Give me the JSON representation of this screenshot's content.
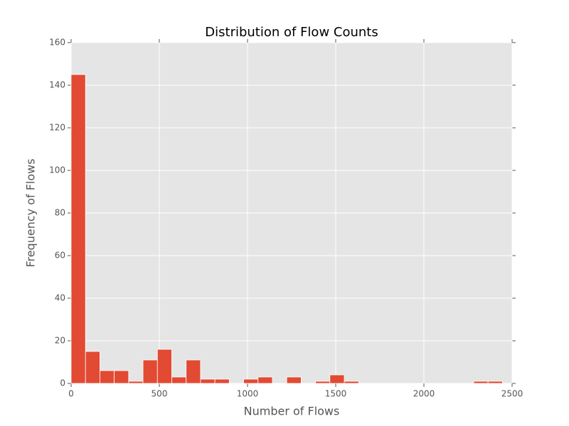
{
  "chart_data": {
    "type": "histogram",
    "title": "Distribution of Flow Counts",
    "x_label": "Number of Flows",
    "y_label": "Frequency of Flows",
    "bins": [
      0,
      81.5,
      163,
      244.5,
      326,
      407.5,
      489,
      570.5,
      652,
      733.5,
      815,
      896.5,
      978,
      1059.5,
      1141,
      1222.5,
      1304,
      1385.5,
      1467,
      1548.5,
      1630,
      1711.5,
      1793,
      1874.5,
      1956,
      2037.5,
      2119,
      2200.5,
      2282,
      2363.5,
      2445
    ],
    "values": [
      145,
      15,
      6,
      6,
      1,
      11,
      16,
      3,
      11,
      2,
      2,
      0,
      2,
      3,
      0,
      3,
      0,
      1,
      4,
      1,
      0,
      0,
      0,
      0,
      0,
      0,
      0,
      0,
      1,
      1
    ],
    "color": "#e24a33",
    "background": "#e5e5e5",
    "grid": true,
    "xlim": [
      0,
      2500
    ],
    "xticks": [
      0,
      500,
      1000,
      1500,
      2000,
      2500
    ],
    "ylim": [
      0,
      160
    ],
    "yticks": [
      0,
      20,
      40,
      60,
      80,
      100,
      120,
      140,
      160
    ]
  }
}
